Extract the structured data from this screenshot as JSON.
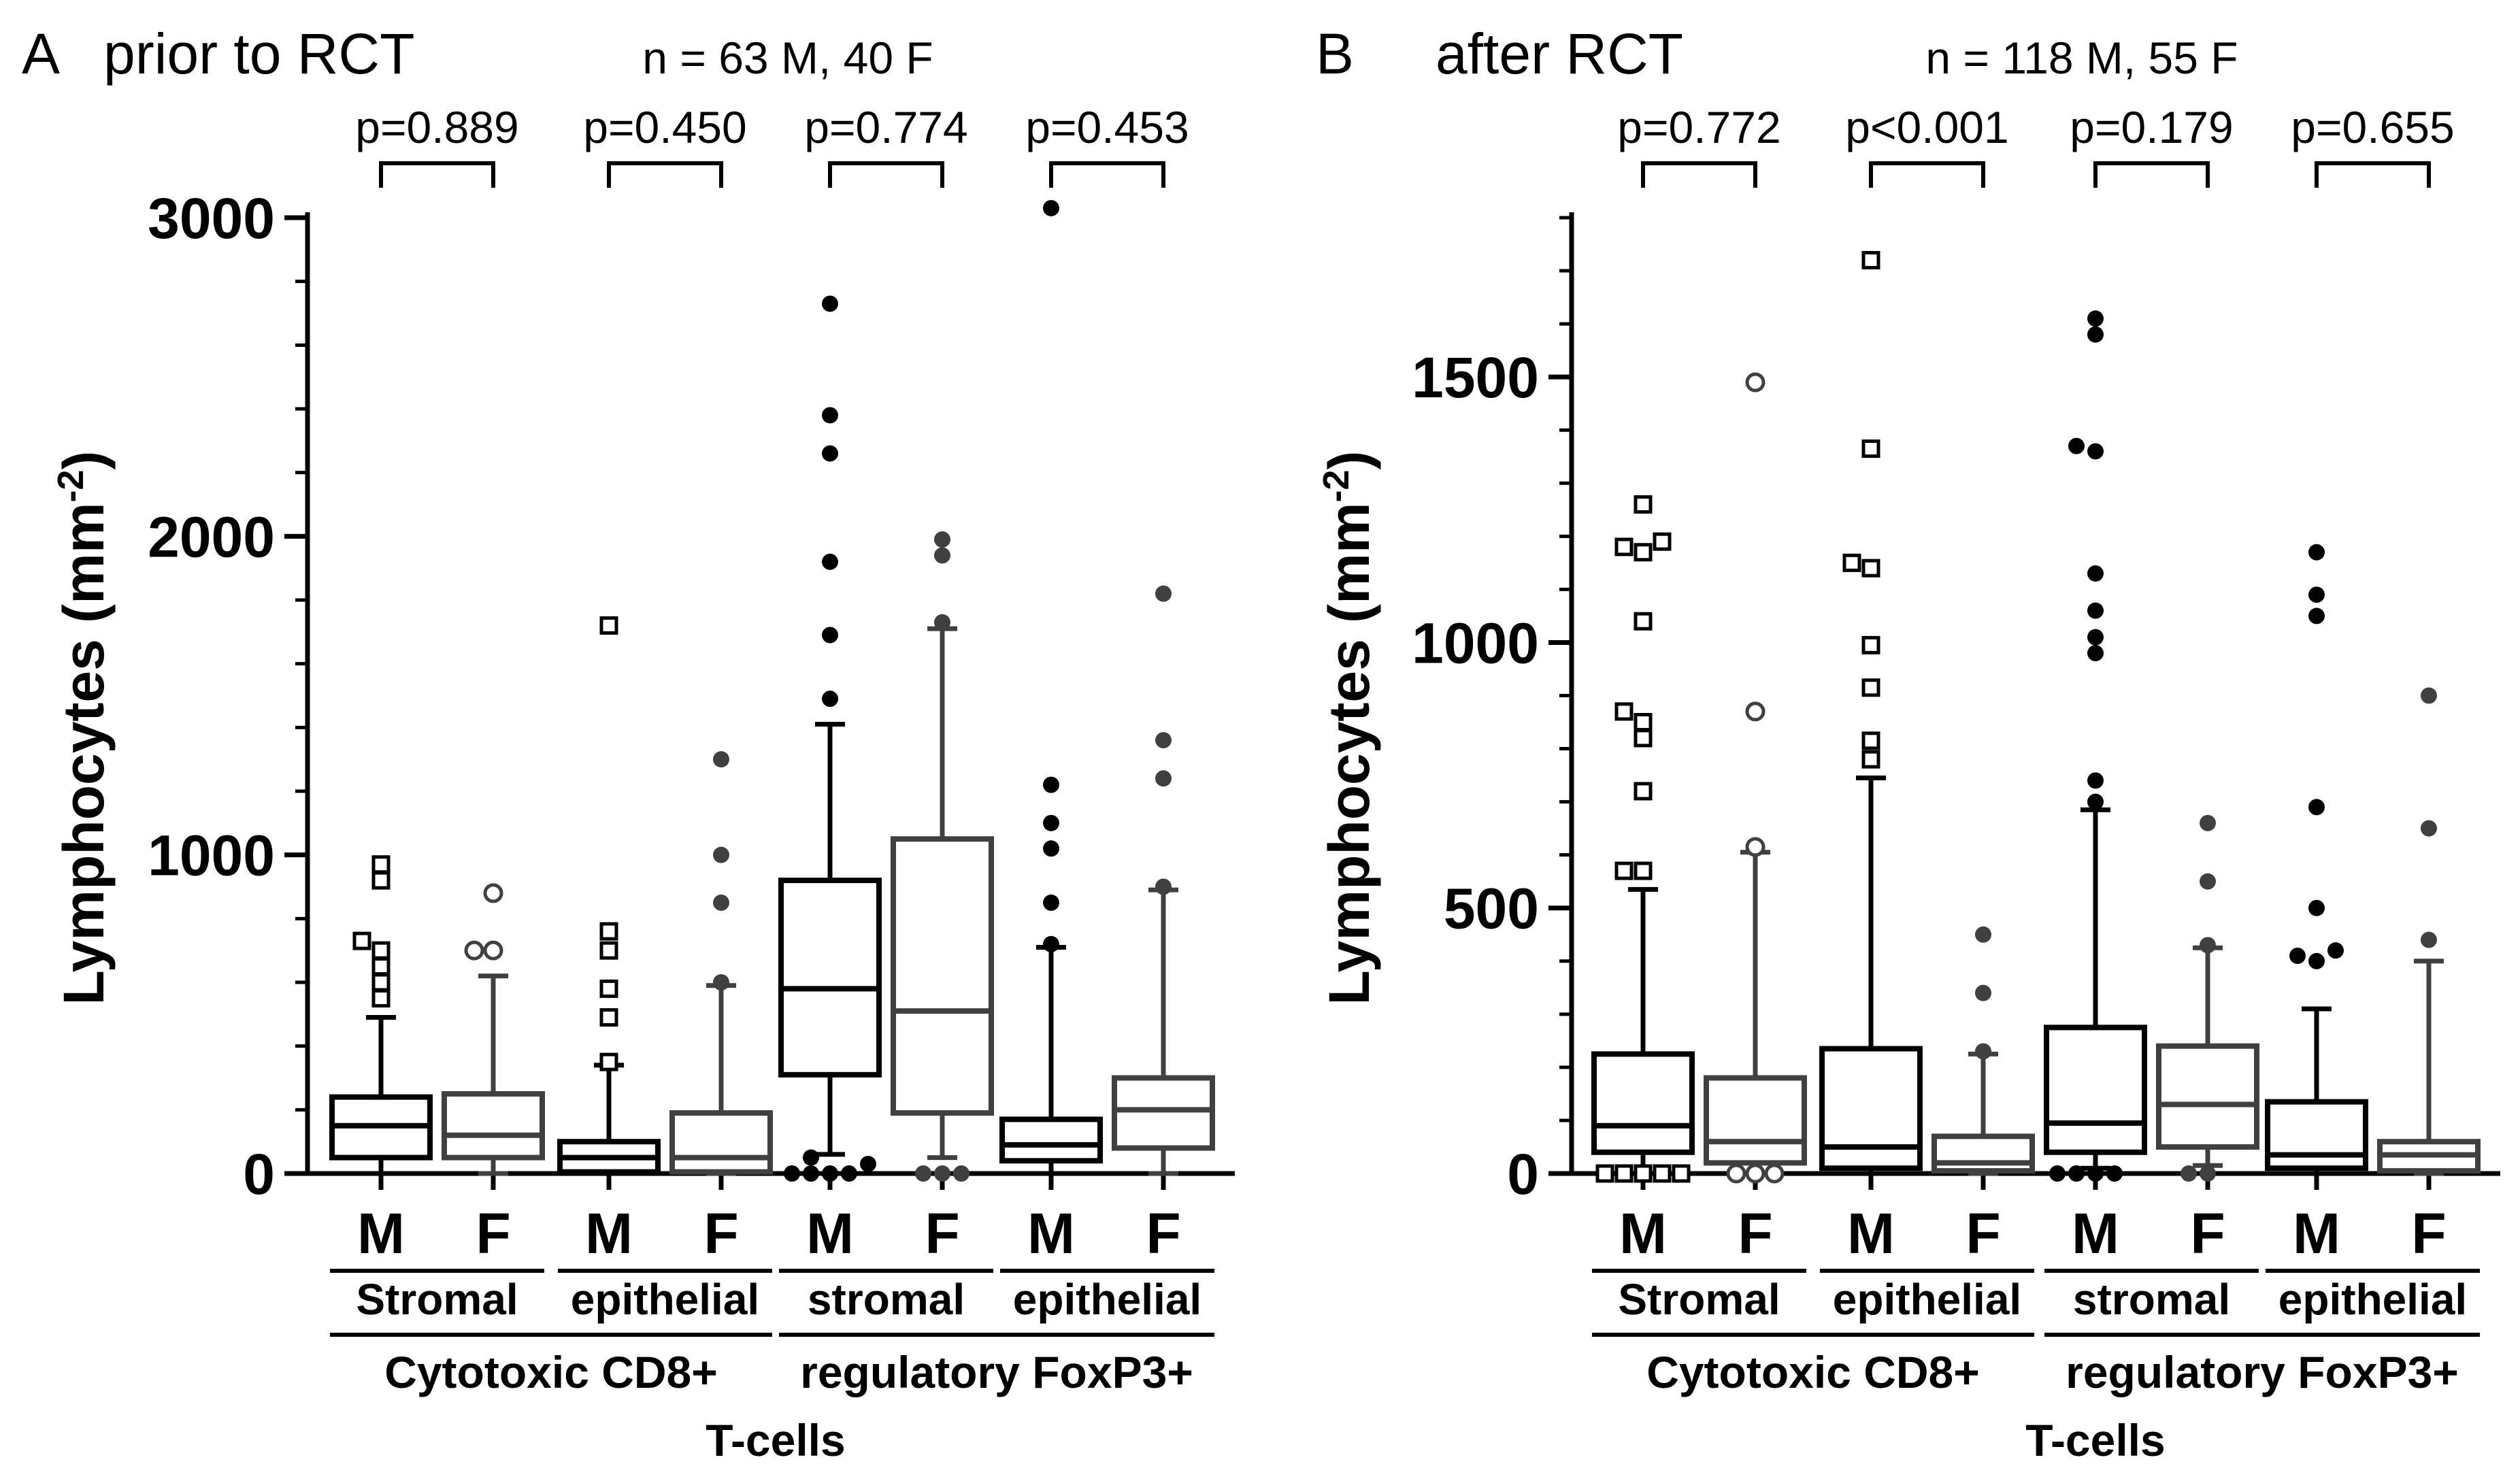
{
  "chart_data": [
    {
      "type": "boxplot",
      "panel_label": "A",
      "title": "prior to RCT",
      "n_text": "n = 63 M, 40 F",
      "ylabel_main": "Lymphocytes (mm",
      "ylabel_sup": "-2",
      "ylabel_end": ")",
      "ylim": [
        0,
        3000
      ],
      "yticks": [
        0,
        1000,
        2000,
        3000
      ],
      "ytick_labels": [
        "0",
        "1000",
        "2000",
        "3000"
      ],
      "minor_tick_step": 200,
      "sex_labels": [
        "M",
        "F",
        "M",
        "F",
        "M",
        "F",
        "M",
        "F"
      ],
      "subgroup_labels": [
        "Stromal",
        "epithelial",
        "stromal",
        "epithelial"
      ],
      "group_labels": [
        "Cytotoxic CD8+",
        "regulatory FoxP3+"
      ],
      "xlabel": "T-cells",
      "p_values": [
        "p=0.889",
        "p=0.450",
        "p=0.774",
        "p=0.453"
      ],
      "boxes": [
        {
          "label": "M",
          "group": "Cytotoxic CD8+ Stromal",
          "q1": 50,
          "median": 150,
          "q3": 240,
          "whisker_low": 0,
          "whisker_high": 490,
          "outlier_marker": "square",
          "outliers": [
            550,
            600,
            650,
            700,
            730,
            920,
            970
          ]
        },
        {
          "label": "F",
          "group": "Cytotoxic CD8+ Stromal",
          "q1": 50,
          "median": 120,
          "q3": 250,
          "whisker_low": 0,
          "whisker_high": 620,
          "outlier_marker": "circle",
          "outliers": [
            700,
            700,
            880
          ]
        },
        {
          "label": "M",
          "group": "Cytotoxic CD8+ epithelial",
          "q1": 5,
          "median": 50,
          "q3": 100,
          "whisker_low": 0,
          "whisker_high": 340,
          "outlier_marker": "square",
          "outliers": [
            350,
            490,
            580,
            700,
            760,
            1720
          ]
        },
        {
          "label": "F",
          "group": "Cytotoxic CD8+ epithelial",
          "q1": 5,
          "median": 50,
          "q3": 190,
          "whisker_low": 0,
          "whisker_high": 590,
          "outlier_marker": "dot",
          "outliers": [
            600,
            850,
            1000,
            1300
          ]
        },
        {
          "label": "M",
          "group": "regulatory FoxP3+ stromal",
          "q1": 310,
          "median": 580,
          "q3": 920,
          "whisker_low": 60,
          "whisker_high": 1410,
          "outlier_marker": "dot",
          "outliers": [
            0,
            0,
            0,
            0,
            30,
            50,
            1490,
            1690,
            1920,
            2260,
            2380,
            2730
          ]
        },
        {
          "label": "F",
          "group": "regulatory FoxP3+ stromal",
          "q1": 190,
          "median": 510,
          "q3": 1050,
          "whisker_low": 50,
          "whisker_high": 1710,
          "outlier_marker": "dot",
          "outliers": [
            0,
            0,
            0,
            1730,
            1940,
            1990
          ]
        },
        {
          "label": "M",
          "group": "regulatory FoxP3+ epithelial",
          "q1": 40,
          "median": 90,
          "q3": 170,
          "whisker_low": 0,
          "whisker_high": 710,
          "outlier_marker": "dot",
          "outliers": [
            720,
            850,
            1020,
            1100,
            1220,
            3030
          ]
        },
        {
          "label": "F",
          "group": "regulatory FoxP3+ epithelial",
          "q1": 80,
          "median": 200,
          "q3": 300,
          "whisker_low": 0,
          "whisker_high": 890,
          "outlier_marker": "dot",
          "outliers": [
            900,
            1240,
            1360,
            1820
          ]
        }
      ]
    },
    {
      "type": "boxplot",
      "panel_label": "B",
      "title": "after RCT",
      "n_text": "n = 118 M, 55 F",
      "ylabel_main": "Lymphocytes (mm",
      "ylabel_sup": "-2",
      "ylabel_end": ")",
      "ylim": [
        0,
        1800
      ],
      "yticks": [
        0,
        500,
        1000,
        1500
      ],
      "ytick_labels": [
        "0",
        "500",
        "1000",
        "1500"
      ],
      "minor_tick_step": 100,
      "sex_labels": [
        "M",
        "F",
        "M",
        "F",
        "M",
        "F",
        "M",
        "F"
      ],
      "subgroup_labels": [
        "Stromal",
        "epithelial",
        "stromal",
        "epithelial"
      ],
      "group_labels": [
        "Cytotoxic CD8+",
        "regulatory FoxP3+"
      ],
      "xlabel": "T-cells",
      "p_values": [
        "p=0.772",
        "p<0.001",
        "p=0.179",
        "p=0.655"
      ],
      "boxes": [
        {
          "label": "M",
          "group": "Cytotoxic CD8+ Stromal",
          "q1": 40,
          "median": 90,
          "q3": 225,
          "whisker_low": 0,
          "whisker_high": 535,
          "outlier_marker": "square",
          "outliers": [
            0,
            0,
            0,
            0,
            0,
            570,
            570,
            720,
            820,
            850,
            870,
            1040,
            1170,
            1180,
            1190,
            1260
          ]
        },
        {
          "label": "F",
          "group": "Cytotoxic CD8+ Stromal",
          "q1": 20,
          "median": 60,
          "q3": 180,
          "whisker_low": 0,
          "whisker_high": 605,
          "outlier_marker": "circle",
          "outliers": [
            0,
            0,
            0,
            615,
            870,
            1490
          ]
        },
        {
          "label": "M",
          "group": "Cytotoxic CD8+ epithelial",
          "q1": 10,
          "median": 50,
          "q3": 235,
          "whisker_low": 0,
          "whisker_high": 745,
          "outlier_marker": "square",
          "outliers": [
            780,
            815,
            915,
            995,
            1140,
            1150,
            1365,
            1720
          ]
        },
        {
          "label": "F",
          "group": "Cytotoxic CD8+ epithelial",
          "q1": 5,
          "median": 20,
          "q3": 70,
          "whisker_low": 0,
          "whisker_high": 225,
          "outlier_marker": "dot",
          "outliers": [
            230,
            340,
            450
          ]
        },
        {
          "label": "M",
          "group": "regulatory FoxP3+ stromal",
          "q1": 40,
          "median": 95,
          "q3": 275,
          "whisker_low": 10,
          "whisker_high": 685,
          "outlier_marker": "dot",
          "outliers": [
            0,
            0,
            0,
            0,
            700,
            740,
            980,
            1010,
            1060,
            1130,
            1360,
            1370,
            1580,
            1610
          ]
        },
        {
          "label": "F",
          "group": "regulatory FoxP3+ stromal",
          "q1": 50,
          "median": 130,
          "q3": 240,
          "whisker_low": 15,
          "whisker_high": 425,
          "outlier_marker": "dot",
          "outliers": [
            0,
            0,
            430,
            550,
            660
          ]
        },
        {
          "label": "M",
          "group": "regulatory FoxP3+ epithelial",
          "q1": 10,
          "median": 35,
          "q3": 135,
          "whisker_low": 0,
          "whisker_high": 310,
          "outlier_marker": "dot",
          "outliers": [
            400,
            410,
            420,
            500,
            690,
            1050,
            1090,
            1170
          ]
        },
        {
          "label": "F",
          "group": "regulatory FoxP3+ epithelial",
          "q1": 5,
          "median": 35,
          "q3": 60,
          "whisker_low": 0,
          "whisker_high": 400,
          "outlier_marker": "dot",
          "outliers": [
            440,
            650,
            900
          ]
        }
      ]
    }
  ]
}
